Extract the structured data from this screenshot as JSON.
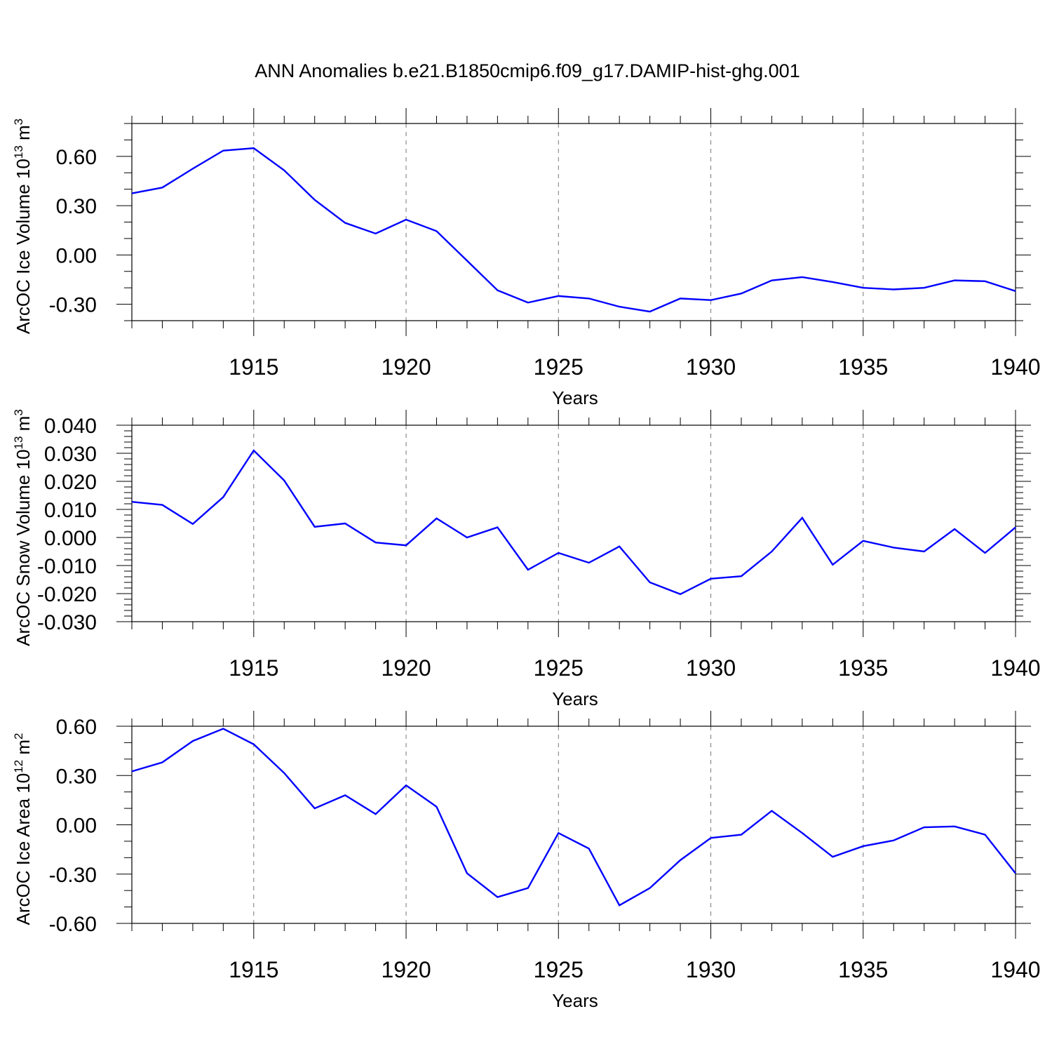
{
  "title": "ANN Anomalies b.e21.B1850cmip6.f09_g17.DAMIP-hist-ghg.001",
  "colors": {
    "line": "#0000ff",
    "axis": "#000000",
    "grid": "#777777"
  },
  "chart_data": [
    {
      "type": "line",
      "xlabel": "Years",
      "ylabel": "ArcOC Ice Volume 10",
      "ylabel_exp": "13",
      "ylabel_unit": " m",
      "ylabel_unit_exp": "3",
      "xlim": [
        1911,
        1940
      ],
      "ylim": [
        -0.4,
        0.8
      ],
      "xticks": [
        1915,
        1920,
        1925,
        1930,
        1935,
        1940
      ],
      "yticks": [
        0.6,
        0.3,
        0.0,
        -0.3
      ],
      "ytick_labels": [
        "0.60",
        "0.30",
        "0.00",
        "-0.30"
      ],
      "yminor_step": 0.1,
      "grid_x": "dashed at major ticks",
      "series": [
        {
          "x": [
            1911,
            1912,
            1913,
            1914,
            1915,
            1916,
            1917,
            1918,
            1919,
            1920,
            1921,
            1922,
            1923,
            1924,
            1925,
            1926,
            1927,
            1928,
            1929,
            1930,
            1931,
            1932,
            1933,
            1934,
            1935,
            1936,
            1937,
            1938,
            1939,
            1940
          ],
          "values": [
            0.375,
            0.41,
            0.525,
            0.635,
            0.65,
            0.515,
            0.335,
            0.195,
            0.13,
            0.215,
            0.145,
            -0.035,
            -0.215,
            -0.29,
            -0.25,
            -0.265,
            -0.315,
            -0.345,
            -0.265,
            -0.275,
            -0.235,
            -0.155,
            -0.135,
            -0.165,
            -0.2,
            -0.21,
            -0.2,
            -0.155,
            -0.16,
            -0.22
          ]
        }
      ]
    },
    {
      "type": "line",
      "xlabel": "Years",
      "ylabel": "ArcOC Snow Volume 10",
      "ylabel_exp": "13",
      "ylabel_unit": " m",
      "ylabel_unit_exp": "3",
      "xlim": [
        1911,
        1940
      ],
      "ylim": [
        -0.03,
        0.04
      ],
      "xticks": [
        1915,
        1920,
        1925,
        1930,
        1935,
        1940
      ],
      "yticks": [
        0.04,
        0.03,
        0.02,
        0.01,
        0.0,
        -0.01,
        -0.02,
        -0.03
      ],
      "ytick_labels": [
        "0.040",
        "0.030",
        "0.020",
        "0.010",
        "0.000",
        "-0.010",
        "-0.020",
        "-0.030"
      ],
      "yminor_step": 0.002,
      "grid_x": "dashed at major ticks",
      "series": [
        {
          "x": [
            1911,
            1912,
            1913,
            1914,
            1915,
            1916,
            1917,
            1918,
            1919,
            1920,
            1921,
            1922,
            1923,
            1924,
            1925,
            1926,
            1927,
            1928,
            1929,
            1930,
            1931,
            1932,
            1933,
            1934,
            1935,
            1936,
            1937,
            1938,
            1939,
            1940
          ],
          "values": [
            0.0127,
            0.0116,
            0.0048,
            0.0144,
            0.031,
            0.0203,
            0.0038,
            0.005,
            -0.0018,
            -0.0028,
            0.0068,
            0.0,
            0.0036,
            -0.0115,
            -0.0055,
            -0.009,
            -0.0032,
            -0.016,
            -0.0202,
            -0.0147,
            -0.0138,
            -0.005,
            0.007,
            -0.0097,
            -0.0012,
            -0.0036,
            -0.005,
            0.003,
            -0.0055,
            0.0036
          ]
        }
      ]
    },
    {
      "type": "line",
      "xlabel": "Years",
      "ylabel": "ArcOC Ice Area 10",
      "ylabel_exp": "12",
      "ylabel_unit": " m",
      "ylabel_unit_exp": "2",
      "xlim": [
        1911,
        1940
      ],
      "ylim": [
        -0.6,
        0.6
      ],
      "xticks": [
        1915,
        1920,
        1925,
        1930,
        1935,
        1940
      ],
      "yticks": [
        0.6,
        0.3,
        0.0,
        -0.3,
        -0.6
      ],
      "ytick_labels": [
        "0.60",
        "0.30",
        "0.00",
        "-0.30",
        "-0.60"
      ],
      "yminor_step": 0.1,
      "grid_x": "dashed at major ticks",
      "series": [
        {
          "x": [
            1911,
            1912,
            1913,
            1914,
            1915,
            1916,
            1917,
            1918,
            1919,
            1920,
            1921,
            1922,
            1923,
            1924,
            1925,
            1926,
            1927,
            1928,
            1929,
            1930,
            1931,
            1932,
            1933,
            1934,
            1935,
            1936,
            1937,
            1938,
            1939,
            1940
          ],
          "values": [
            0.325,
            0.38,
            0.51,
            0.585,
            0.49,
            0.315,
            0.1,
            0.18,
            0.065,
            0.24,
            0.11,
            -0.295,
            -0.44,
            -0.385,
            -0.05,
            -0.145,
            -0.49,
            -0.385,
            -0.215,
            -0.08,
            -0.06,
            0.085,
            -0.05,
            -0.195,
            -0.13,
            -0.095,
            -0.015,
            -0.01,
            -0.06,
            -0.295
          ]
        }
      ]
    }
  ]
}
